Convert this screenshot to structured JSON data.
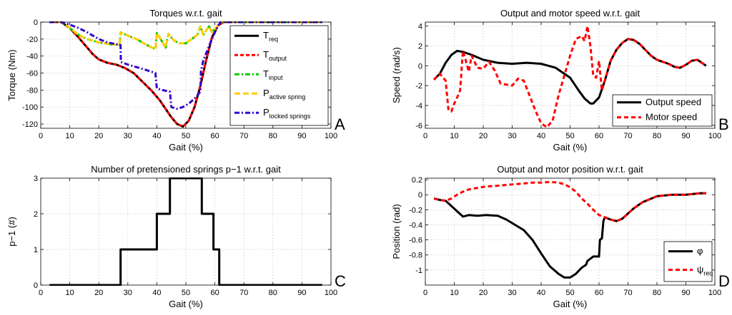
{
  "figure": {
    "panel_letters": [
      "A",
      "B",
      "C",
      "D"
    ]
  },
  "chart_data": [
    {
      "type": "line",
      "title": "Torques w.r.t. gait",
      "xlabel": "Gait (%)",
      "ylabel": "Torque (Nm)",
      "xlim": [
        0,
        100
      ],
      "ylim": [
        -125,
        0
      ],
      "xticks": [
        0,
        10,
        20,
        30,
        40,
        50,
        60,
        70,
        80,
        90,
        100
      ],
      "yticks": [
        -120,
        -100,
        -80,
        -60,
        -40,
        -20,
        0
      ],
      "grid": true,
      "legend_position": "top-right",
      "series": [
        {
          "name": "T",
          "sub": "req",
          "color": "#000000",
          "dash": "",
          "x": [
            3,
            7,
            10,
            13,
            16,
            18,
            20,
            23,
            26,
            29,
            32,
            35,
            38,
            41,
            43,
            45,
            47,
            49,
            51,
            53,
            55,
            57,
            59,
            61,
            63,
            97
          ],
          "y": [
            0,
            0,
            -7,
            -18,
            -30,
            -38,
            -44,
            -48,
            -50,
            -54,
            -60,
            -70,
            -80,
            -92,
            -102,
            -112,
            -120,
            -123,
            -116,
            -100,
            -75,
            -45,
            -18,
            -4,
            0,
            0
          ]
        },
        {
          "name": "T",
          "sub": "output",
          "color": "#ff0000",
          "dash": "5,3",
          "x": [
            3,
            7,
            10,
            13,
            16,
            18,
            20,
            23,
            26,
            29,
            32,
            35,
            38,
            41,
            43,
            45,
            47,
            49,
            51,
            53,
            55,
            57,
            59,
            61,
            63,
            97
          ],
          "y": [
            0,
            0,
            -7,
            -18,
            -30,
            -38,
            -44,
            -48,
            -50,
            -54,
            -60,
            -70,
            -80,
            -92,
            -102,
            -112,
            -120,
            -123,
            -116,
            -100,
            -75,
            -45,
            -18,
            -4,
            0,
            0
          ]
        },
        {
          "name": "T",
          "sub": "input",
          "color": "#00cc00",
          "dash": "7,3,2,3",
          "x": [
            3,
            7,
            9,
            10,
            13,
            16,
            20,
            24,
            27.2,
            27.5,
            30,
            33,
            36,
            39.5,
            40,
            41,
            42,
            43,
            44,
            45,
            46,
            48,
            50,
            52,
            54,
            55,
            56,
            57,
            58,
            59,
            60,
            62,
            97
          ],
          "y": [
            0,
            0,
            -4,
            -7,
            -15,
            -20,
            -24,
            -26,
            -27,
            -12,
            -16,
            -20,
            -26,
            -32,
            -13,
            -18,
            -24,
            -30,
            -14,
            -18,
            -22,
            -25,
            -25,
            -20,
            -15,
            -5,
            -15,
            -10,
            -5,
            -12,
            -8,
            0,
            0
          ]
        },
        {
          "name": "P",
          "sub": "active spring",
          "color": "#ffcc00",
          "dash": "8,4",
          "x": [
            3,
            7,
            9,
            10,
            13,
            16,
            20,
            24,
            27.2,
            27.5,
            30,
            33,
            36,
            39.5,
            40,
            41,
            42,
            43,
            44,
            45,
            46,
            48,
            50,
            52,
            54,
            55,
            56,
            57,
            58,
            59,
            60,
            62,
            97
          ],
          "y": [
            0,
            0,
            -4,
            -7,
            -15,
            -20,
            -24,
            -26,
            -27,
            -12,
            -16,
            -20,
            -26,
            -32,
            -13,
            -18,
            -24,
            -30,
            -14,
            -18,
            -22,
            -25,
            -25,
            -20,
            -15,
            -5,
            -15,
            -10,
            -5,
            -12,
            -8,
            0,
            0
          ]
        },
        {
          "name": "P",
          "sub": "locked springs",
          "color": "#3300cc",
          "dash": "7,3,2,3",
          "x": [
            3,
            7,
            10,
            13,
            16,
            18,
            20,
            23,
            26,
            27.5,
            27.6,
            30,
            33,
            36,
            39.5,
            40,
            42,
            44.5,
            45,
            47,
            49,
            51,
            53,
            55,
            55.2,
            56,
            58,
            60,
            61,
            62,
            97
          ],
          "y": [
            0,
            0,
            -3,
            -7,
            -12,
            -16,
            -20,
            -24,
            -26,
            -27,
            -47,
            -50,
            -53,
            -56,
            -60,
            -78,
            -80,
            -82,
            -100,
            -102,
            -100,
            -96,
            -90,
            -82,
            -58,
            -45,
            -28,
            -12,
            -5,
            0,
            0
          ]
        }
      ]
    },
    {
      "type": "line",
      "title": "Output and motor speed w.r.t. gait",
      "xlabel": "Gait (%)",
      "ylabel": "Speed (rad/s)",
      "xlim": [
        0,
        100
      ],
      "ylim": [
        -6.3,
        4.4
      ],
      "xticks": [
        0,
        10,
        20,
        30,
        40,
        50,
        60,
        70,
        80,
        90,
        100
      ],
      "yticks": [
        -6,
        -4,
        -2,
        0,
        2,
        4
      ],
      "grid": true,
      "legend_position": "bottom-right",
      "series": [
        {
          "name": "Output speed",
          "color": "#000000",
          "dash": "",
          "x": [
            3,
            5,
            7,
            9,
            11,
            13,
            16,
            20,
            25,
            30,
            35,
            40,
            45,
            50,
            53,
            55,
            57,
            58,
            60,
            62,
            64,
            66,
            68,
            70,
            72,
            74,
            76,
            78,
            80,
            82,
            84,
            86,
            88,
            90,
            92,
            94,
            96,
            97
          ],
          "y": [
            -1.4,
            -0.8,
            0.3,
            1.1,
            1.5,
            1.4,
            1.1,
            0.6,
            0.3,
            0.2,
            0.3,
            0.2,
            -0.2,
            -1.2,
            -2.5,
            -3.3,
            -3.8,
            -3.8,
            -3.2,
            -1.5,
            0.5,
            1.6,
            2.3,
            2.7,
            2.6,
            2.2,
            1.6,
            1.0,
            0.6,
            0.4,
            0.2,
            -0.1,
            -0.2,
            0.1,
            0.5,
            0.6,
            0.2,
            0.0
          ]
        },
        {
          "name": "Motor speed",
          "color": "#ff0000",
          "dash": "6,4",
          "x": [
            3,
            5,
            7,
            8,
            9,
            10,
            11,
            12,
            13,
            14,
            15,
            16,
            18,
            20,
            22,
            24,
            26,
            28,
            30,
            32,
            34,
            36,
            38,
            40,
            42,
            44,
            46,
            48,
            50,
            52,
            54,
            55,
            56,
            57,
            58,
            59,
            60,
            61,
            62,
            64,
            66,
            68,
            70,
            72,
            74,
            76,
            78,
            80,
            82,
            84,
            86,
            88,
            90,
            92,
            94,
            96,
            97
          ],
          "y": [
            -1.4,
            -0.8,
            -1.5,
            -4.5,
            -4.6,
            -3.8,
            -3.2,
            -2.5,
            1.5,
            0.5,
            -0.6,
            1.0,
            -0.2,
            -0.3,
            0.4,
            -0.5,
            -1.8,
            -1.9,
            -2.0,
            -1.3,
            -1.5,
            -3.0,
            -4.5,
            -5.8,
            -6.2,
            -5.5,
            -3.0,
            -1.0,
            1.0,
            2.7,
            3.0,
            2.5,
            4.0,
            2.0,
            -1.0,
            -1.2,
            0.5,
            -2.5,
            -1.5,
            0.5,
            1.6,
            2.3,
            2.7,
            2.6,
            2.2,
            1.6,
            1.0,
            0.6,
            0.4,
            0.2,
            -0.1,
            -0.2,
            0.1,
            0.5,
            0.6,
            0.2,
            0.0
          ]
        }
      ]
    },
    {
      "type": "line",
      "title": "Number of pretensioned springs p−1 w.r.t. gait",
      "xlabel": "Gait (%)",
      "ylabel": "p−1 (#)",
      "xlim": [
        0,
        100
      ],
      "ylim": [
        0,
        3
      ],
      "xticks": [
        0,
        10,
        20,
        30,
        40,
        50,
        60,
        70,
        80,
        90,
        100
      ],
      "yticks": [
        0,
        1,
        2,
        3
      ],
      "grid": true,
      "series": [
        {
          "color": "#000000",
          "dash": "",
          "x": [
            3,
            27.5,
            27.5,
            40,
            40,
            44.5,
            44.5,
            55.5,
            55.5,
            59.5,
            59.5,
            61.5,
            61.5,
            97
          ],
          "y": [
            0,
            0,
            1,
            1,
            2,
            2,
            3,
            3,
            2,
            2,
            1,
            1,
            0,
            0
          ]
        }
      ]
    },
    {
      "type": "line",
      "title": "Output and motor position w.r.t. gait",
      "xlabel": "Gait (%)",
      "ylabel": "Position (rad)",
      "xlim": [
        0,
        100
      ],
      "ylim": [
        -1.2,
        0.22
      ],
      "xticks": [
        0,
        10,
        20,
        30,
        40,
        50,
        60,
        70,
        80,
        90,
        100
      ],
      "yticks": [
        -1,
        -0.8,
        -0.6,
        -0.4,
        -0.2,
        0,
        0.2
      ],
      "grid": true,
      "legend_position": "bottom-right",
      "series": [
        {
          "name": "φ",
          "sub": "",
          "color": "#000000",
          "dash": "",
          "x": [
            3,
            5,
            7,
            9,
            11,
            13,
            15,
            18,
            21,
            25,
            28,
            31,
            34,
            37,
            40,
            43,
            46,
            48,
            50,
            52,
            54,
            55.5,
            56,
            57,
            58,
            59,
            60,
            60.3,
            61,
            61.5,
            62,
            64,
            66,
            68,
            70,
            72,
            75,
            80,
            85,
            90,
            95,
            97
          ],
          "y": [
            -0.05,
            -0.07,
            -0.08,
            -0.15,
            -0.22,
            -0.29,
            -0.27,
            -0.28,
            -0.27,
            -0.28,
            -0.33,
            -0.4,
            -0.47,
            -0.6,
            -0.78,
            -0.95,
            -1.05,
            -1.1,
            -1.1,
            -1.05,
            -0.97,
            -0.93,
            -0.88,
            -0.85,
            -0.82,
            -0.82,
            -0.82,
            -0.6,
            -0.58,
            -0.35,
            -0.3,
            -0.33,
            -0.35,
            -0.32,
            -0.25,
            -0.18,
            -0.1,
            -0.02,
            0.0,
            0.0,
            0.02,
            0.02
          ]
        },
        {
          "name": "ψ",
          "sub": "req",
          "color": "#ff0000",
          "dash": "6,4",
          "x": [
            3,
            5,
            7,
            9,
            11,
            13,
            15,
            18,
            21,
            25,
            28,
            31,
            34,
            37,
            40,
            43,
            46,
            48,
            50,
            52,
            54,
            56,
            58,
            60,
            62,
            64,
            66,
            68,
            70,
            72,
            75,
            80,
            85,
            90,
            95,
            97
          ],
          "y": [
            -0.05,
            -0.07,
            -0.08,
            -0.05,
            0.0,
            0.04,
            0.07,
            0.09,
            0.11,
            0.12,
            0.13,
            0.14,
            0.15,
            0.16,
            0.16,
            0.17,
            0.16,
            0.14,
            0.1,
            0.04,
            -0.05,
            -0.12,
            -0.2,
            -0.27,
            -0.3,
            -0.33,
            -0.35,
            -0.32,
            -0.25,
            -0.18,
            -0.1,
            -0.02,
            0.0,
            0.0,
            0.02,
            0.02
          ]
        }
      ]
    }
  ]
}
